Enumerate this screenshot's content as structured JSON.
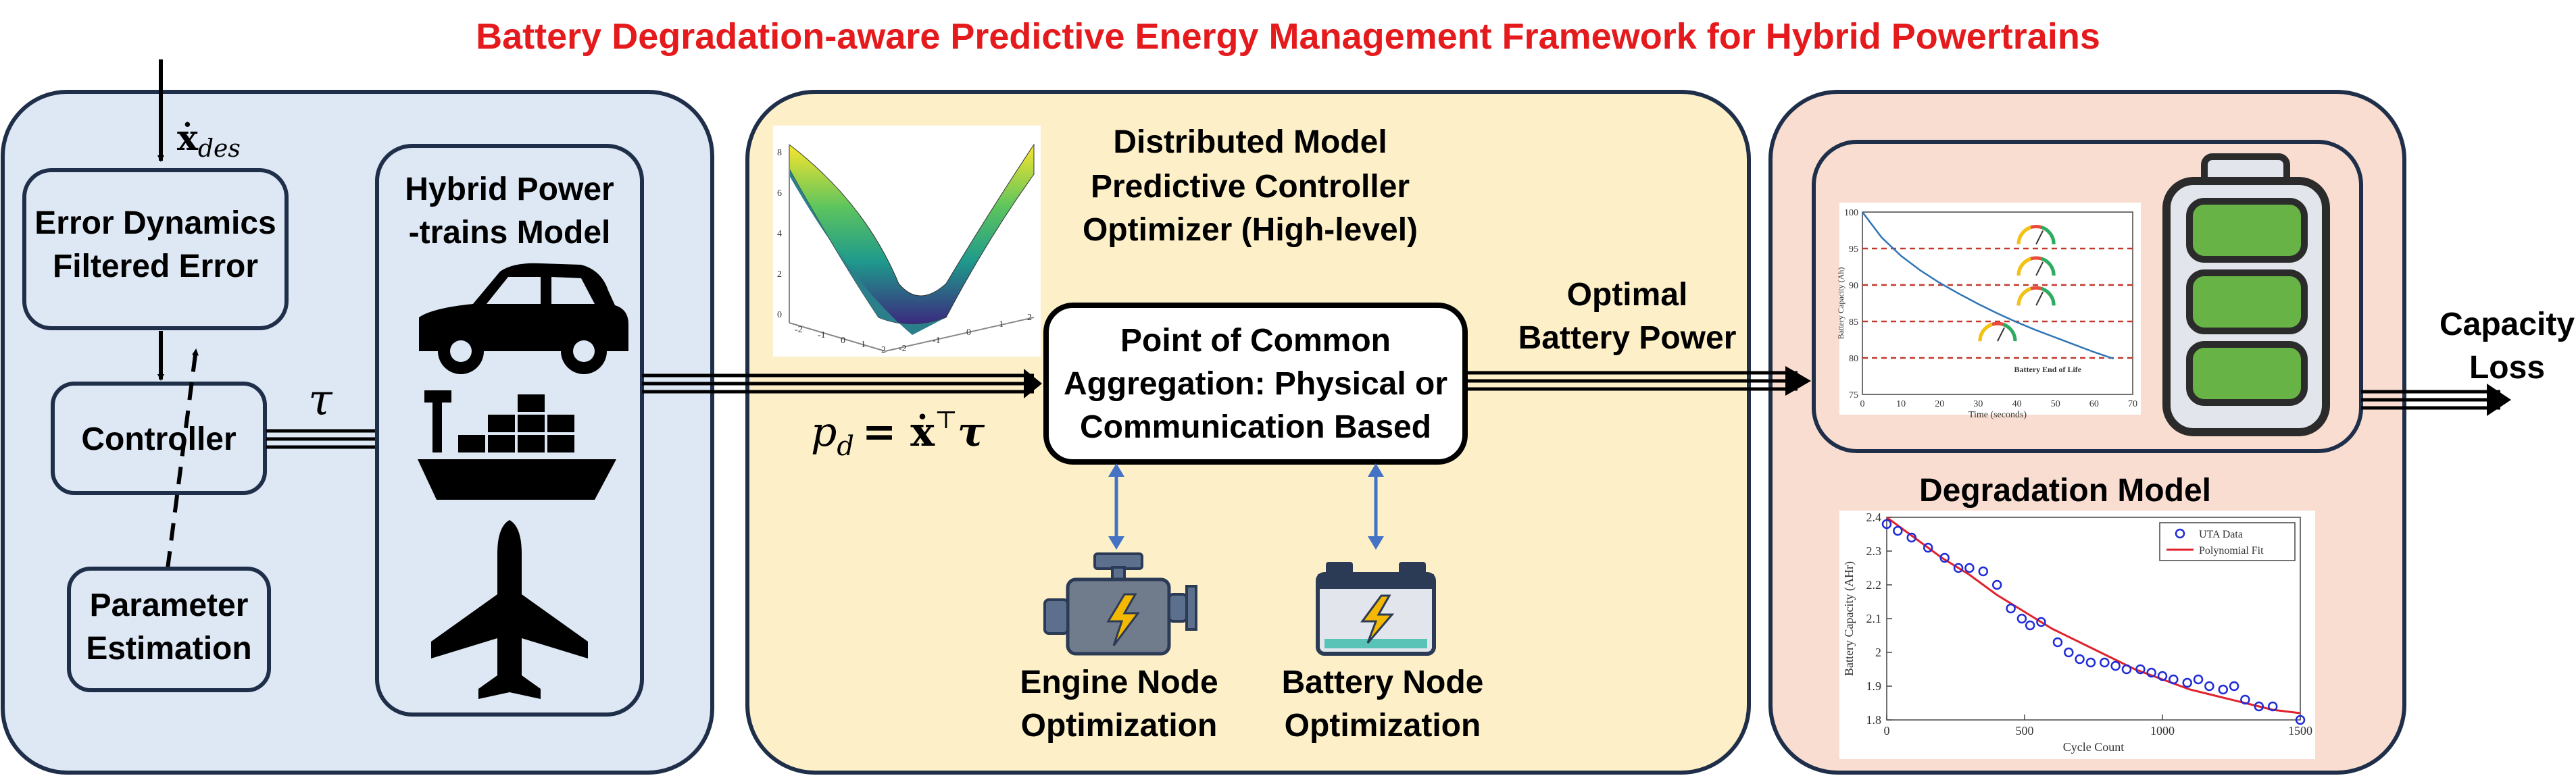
{
  "title": "Battery Degradation-aware Predictive Energy Management Framework for Hybrid Powertrains",
  "colors": {
    "title": "#e41a1c",
    "left_panel": "#dde8f4",
    "middle_panel": "#fdf0c8",
    "right_panel": "#f9ddd0",
    "panel_border": "#1f2f4a",
    "battery_green": "#67b346",
    "arrow_blue": "#4472c4",
    "fit_red": "#e0222d",
    "marker_blue": "#1f2bd6"
  },
  "left": {
    "input_label": "ẋ",
    "input_sub": "des",
    "error_box_line1": "Error Dynamics",
    "error_box_line2": "Filtered Error",
    "controller_label": "Controller",
    "param_line1": "Parameter",
    "param_line2": "Estimation",
    "tau_label": "τ",
    "hybrid_title_line1": "Hybrid Power",
    "hybrid_title_line2": "-trains Model",
    "icons": [
      "car-icon",
      "ship-icon",
      "airplane-icon"
    ]
  },
  "middle": {
    "dmpc_line1": "Distributed Model",
    "dmpc_line2": "Predictive Controller",
    "dmpc_line3": "Optimizer (High-level)",
    "pca_line1": "Point of Common",
    "pca_line2": "Aggregation: Physical or",
    "pca_line3": "Communication Based",
    "pd_lhs": "p",
    "pd_sub": "d",
    "pd_rhs": "= ẋ",
    "pd_sup": "⊤",
    "pd_tau": "τ",
    "engine_line1": "Engine Node",
    "engine_line2": "Optimization",
    "battery_line1": "Battery Node",
    "battery_line2": "Optimization",
    "surface_ticks": [
      "-2",
      "-1",
      "0",
      "1",
      "2",
      "-2",
      "-1",
      "0",
      "1",
      "2"
    ],
    "surface_z_ticks": [
      "0",
      "2",
      "4",
      "6",
      "8"
    ]
  },
  "flow": {
    "optimal_line1": "Optimal",
    "optimal_line2": "Battery Power",
    "capacity_line1": "Capacity",
    "capacity_line2": "Loss"
  },
  "right": {
    "degradation_title": "Degradation Model",
    "inset_ylabel": "Battery Capacity (Ah)",
    "inset_xlabel": "Time (seconds)",
    "inset_annotation": "Battery End of Life"
  },
  "chart_data": [
    {
      "type": "line",
      "xlabel": "Time (seconds)",
      "ylabel": "Battery Capacity (Ah)",
      "xlim": [
        0,
        70
      ],
      "ylim": [
        75,
        100
      ],
      "xticks": [
        0,
        10,
        20,
        30,
        40,
        50,
        60,
        70
      ],
      "yticks": [
        75,
        80,
        85,
        90,
        95,
        100
      ],
      "series": [
        {
          "x": [
            0,
            5,
            10,
            15,
            20,
            25,
            30,
            35,
            40,
            45,
            50,
            55,
            60,
            65
          ],
          "values": [
            100,
            96.5,
            94.0,
            92.0,
            90.3,
            88.8,
            87.4,
            86.1,
            84.9,
            83.8,
            82.8,
            81.8,
            80.8,
            79.9
          ]
        }
      ],
      "reference_lines": [
        80,
        85,
        90,
        95
      ],
      "annotation": "Battery End of Life"
    },
    {
      "type": "scatter",
      "xlabel": "Cycle Count",
      "ylabel": "Battery Capacity (AHr)",
      "xlim": [
        0,
        1500
      ],
      "ylim": [
        1.8,
        2.4
      ],
      "xticks": [
        0,
        500,
        1000,
        1500
      ],
      "yticks": [
        1.8,
        1.9,
        2.0,
        2.1,
        2.2,
        2.3,
        2.4
      ],
      "legend": "top-right",
      "series": [
        {
          "name": "UTA Data",
          "mode": "markers",
          "x": [
            0,
            40,
            90,
            150,
            210,
            260,
            300,
            350,
            400,
            450,
            490,
            520,
            560,
            620,
            660,
            700,
            740,
            790,
            830,
            870,
            920,
            960,
            1000,
            1040,
            1090,
            1130,
            1170,
            1220,
            1260,
            1300,
            1350,
            1400,
            1500
          ],
          "values": [
            2.38,
            2.36,
            2.34,
            2.31,
            2.28,
            2.25,
            2.25,
            2.24,
            2.2,
            2.13,
            2.1,
            2.08,
            2.09,
            2.03,
            2.0,
            1.98,
            1.97,
            1.97,
            1.96,
            1.95,
            1.95,
            1.94,
            1.93,
            1.92,
            1.91,
            1.92,
            1.9,
            1.89,
            1.9,
            1.86,
            1.84,
            1.84,
            1.8
          ]
        },
        {
          "name": "Polynomial Fit",
          "mode": "line",
          "x": [
            0,
            100,
            200,
            300,
            400,
            500,
            600,
            700,
            800,
            900,
            1000,
            1100,
            1200,
            1300,
            1400,
            1500
          ],
          "values": [
            2.4,
            2.34,
            2.28,
            2.23,
            2.17,
            2.12,
            2.07,
            2.03,
            1.99,
            1.95,
            1.92,
            1.89,
            1.87,
            1.85,
            1.83,
            1.82
          ]
        }
      ]
    }
  ]
}
